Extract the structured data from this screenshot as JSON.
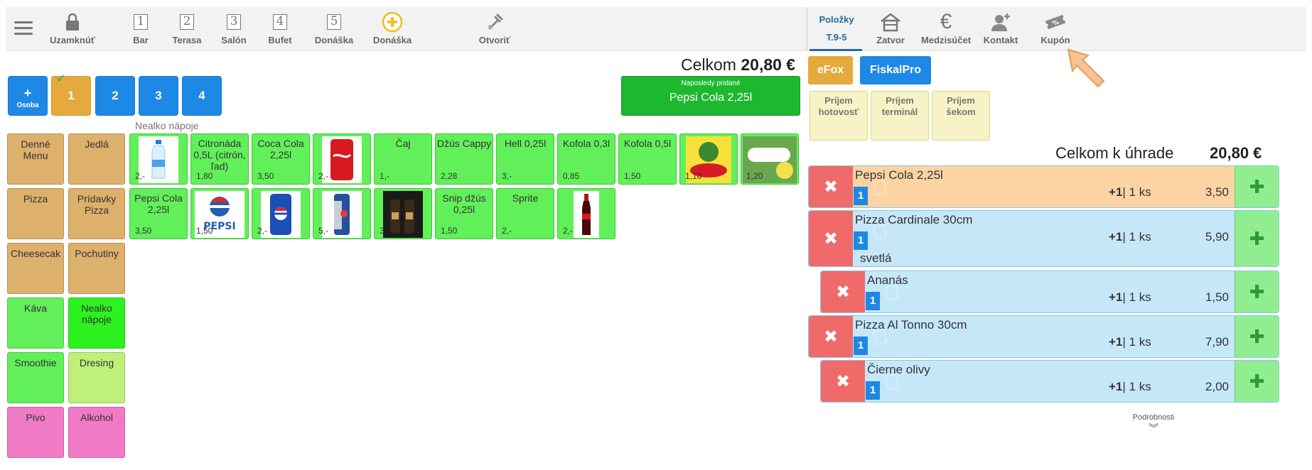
{
  "toolbar": {
    "items": [
      {
        "label": "Uzamknúť",
        "icon": "lock-icon"
      },
      {
        "label": "Bar",
        "icon": "table-1-icon",
        "num": "1"
      },
      {
        "label": "Terasa",
        "icon": "table-2-icon",
        "num": "2"
      },
      {
        "label": "Salón",
        "icon": "table-3-icon",
        "num": "3"
      },
      {
        "label": "Bufet",
        "icon": "table-4-icon",
        "num": "4"
      },
      {
        "label": "Donáška",
        "icon": "table-5-icon",
        "num": "5"
      },
      {
        "label": "Donáška",
        "icon": "plus-circle-icon"
      },
      {
        "label": "Otvoriť",
        "icon": "bottle-open-icon"
      }
    ],
    "right": [
      {
        "label": "Položky",
        "sub": "T.9-5"
      },
      {
        "label": "Zatvor",
        "icon": "house-icon"
      },
      {
        "label": "Medzisúčet",
        "icon": "euro-icon"
      },
      {
        "label": "Kontakt",
        "icon": "add-person-icon"
      },
      {
        "label": "Kupón",
        "icon": "coupon-icon"
      }
    ]
  },
  "order": {
    "total_label": "Celkom",
    "total_value": "20,80 €",
    "persons": {
      "add": "+",
      "add_sub": "Osoba",
      "tabs": [
        "1",
        "2",
        "3",
        "4"
      ],
      "active": "1"
    },
    "last_added": {
      "title": "Naposledy pridané",
      "value": "Pepsi Cola 2,25l"
    }
  },
  "category_label": "Nealko nápoje",
  "categories": [
    "Denné Menu",
    "Jedlá",
    "Pizza",
    "Prídavky Pizza",
    "Cheesecak",
    "Pochutiny",
    "Káva",
    "Nealko nápoje",
    "Smoothie",
    "Dresing",
    "Pivo",
    "Alkohol"
  ],
  "products": [
    {
      "name": "",
      "price": "2,-",
      "img": "water-bottle"
    },
    {
      "name": "Citronáda 0,5L (citrón, ľad)",
      "price": "1,80",
      "img": ""
    },
    {
      "name": "Coca Cola 2,25l",
      "price": "3,50",
      "img": ""
    },
    {
      "name": "",
      "price": "2,-",
      "img": "coca-cola-can"
    },
    {
      "name": "Čaj",
      "price": "1,-",
      "img": ""
    },
    {
      "name": "Džús Cappy",
      "price": "2,28",
      "img": ""
    },
    {
      "name": "Hell 0,25l",
      "price": "3,-",
      "img": ""
    },
    {
      "name": "Kofola 0,3l",
      "price": "0,85",
      "img": ""
    },
    {
      "name": "Kofola 0,5l",
      "price": "1,50",
      "img": ""
    },
    {
      "name": "",
      "price": "1,10",
      "img": "rauch-logo"
    },
    {
      "name": "",
      "price": "1,20",
      "img": "lemon-drink"
    },
    {
      "name": "Pepsi Cola 2,25l",
      "price": "3,50",
      "img": ""
    },
    {
      "name": "",
      "price": "1,50",
      "img": "pepsi-light-logo"
    },
    {
      "name": "",
      "price": "2,-",
      "img": "pepsi-can"
    },
    {
      "name": "",
      "price": "5,-",
      "img": "redbull-can"
    },
    {
      "name": "",
      "price": "3,-",
      "img": "dark-bottles"
    },
    {
      "name": "Snip džús 0,25l",
      "price": "1,50",
      "img": ""
    },
    {
      "name": "Sprite",
      "price": "2,-",
      "img": ""
    },
    {
      "name": "",
      "price": "2,-",
      "img": "cola-bottle"
    }
  ],
  "payment": {
    "efox": "eFox",
    "fiscal": "FiskalPro",
    "methods": [
      "Príjem hotovosť",
      "Príjem terminál",
      "Príjem šekom"
    ]
  },
  "due": {
    "label": "Celkom k úhrade",
    "value": "20,80 €"
  },
  "lines": [
    {
      "name": "Pepsi Cola 2,25l",
      "badge": "1",
      "inc": "+1",
      "qty": "1 ks",
      "price": "3,50",
      "note": "",
      "style": "orange"
    },
    {
      "name": "Pizza Cardinale 30cm",
      "badge": "1",
      "inc": "+1",
      "qty": "1 ks",
      "price": "5,90",
      "note": "svetlá",
      "style": "blue"
    },
    {
      "name": "Ananás",
      "badge": "1",
      "inc": "+1",
      "qty": "1 ks",
      "price": "1,50",
      "note": "",
      "style": "blue"
    },
    {
      "name": "Pizza Al Tonno 30cm",
      "badge": "1",
      "inc": "+1",
      "qty": "1 ks",
      "price": "7,90",
      "note": "",
      "style": "blue"
    },
    {
      "name": "Čierne olivy",
      "badge": "1",
      "inc": "+1",
      "qty": "1 ks",
      "price": "2,00",
      "note": "",
      "style": "blue"
    }
  ],
  "details_label": "Podrobnosti",
  "colors": {
    "blue": "#1e88e5",
    "orange": "#e5a93d",
    "green": "#62f05a",
    "red": "#f06a6a"
  }
}
